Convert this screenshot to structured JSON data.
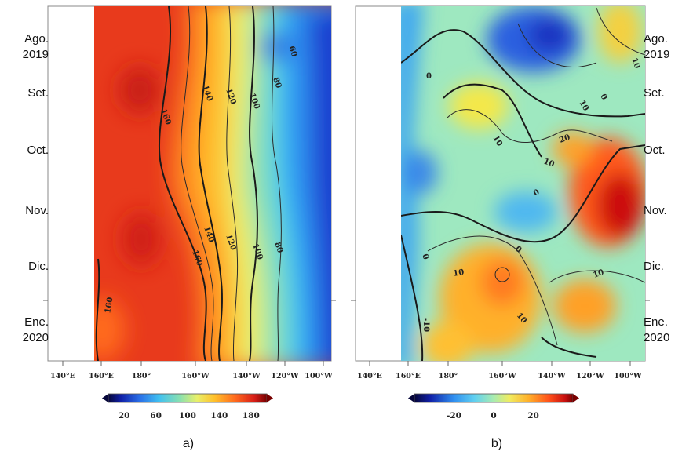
{
  "chart_data": [
    {
      "type": "heatmap",
      "panel_label": "a)",
      "x_ticks": [
        "140°E",
        "160°E",
        "180°",
        "160°W",
        "140°W",
        "120°W",
        "100°W"
      ],
      "y_ticks": [
        "Ago.\n2019",
        "Set.",
        "Oct.",
        "Nov.",
        "Dic.",
        "Ene.\n2020"
      ],
      "colorbar_ticks": [
        "20",
        "60",
        "100",
        "140",
        "180"
      ],
      "colorbar_range": [
        0,
        200
      ],
      "contour_labels": [
        "160",
        "140",
        "120",
        "100",
        "80",
        "60",
        "80",
        "100",
        "120",
        "140",
        "160",
        "160"
      ],
      "colors": [
        "#1f3fd0",
        "#2f8ef0",
        "#40c8f0",
        "#86e0b8",
        "#e8f06a",
        "#ffc02a",
        "#ff7a1e",
        "#ea3a1c",
        "#cf1f18"
      ]
    },
    {
      "type": "heatmap",
      "panel_label": "b)",
      "x_ticks": [
        "140°E",
        "160°E",
        "180°",
        "160°W",
        "140°W",
        "120°W",
        "100°W"
      ],
      "y_ticks": [
        "Ago.\n2019",
        "Set.",
        "Oct.",
        "Nov.",
        "Dic.",
        "Ene.\n2020"
      ],
      "colorbar_ticks": [
        "-20",
        "0",
        "20"
      ],
      "colorbar_range": [
        -40,
        40
      ],
      "contour_labels": [
        "0",
        "10",
        "0",
        "10",
        "20",
        "10",
        "0",
        "0",
        "10",
        "10",
        "0",
        "10",
        "-10",
        "10"
      ],
      "colors": [
        "#001070",
        "#1a40d0",
        "#40a8f0",
        "#7ee0d8",
        "#c4f08c",
        "#f4e84a",
        "#ffb02a",
        "#ff5a1a",
        "#cc1010",
        "#7a0000"
      ]
    }
  ]
}
